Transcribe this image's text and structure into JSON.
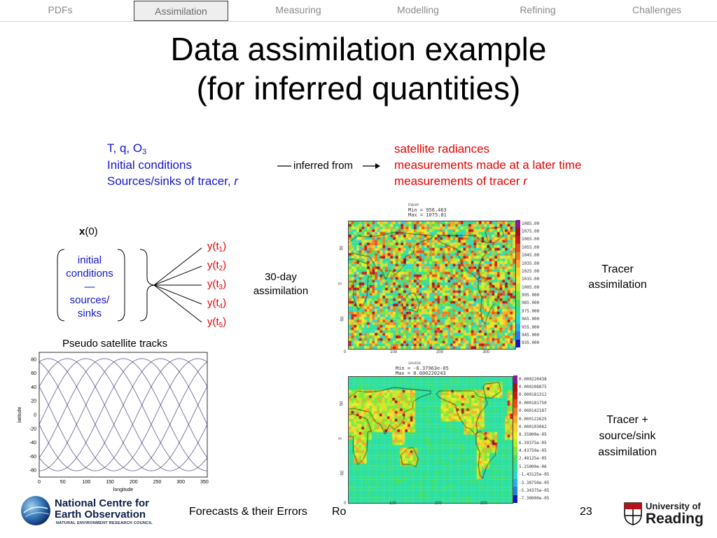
{
  "nav": {
    "items": [
      {
        "label": "PDFs"
      },
      {
        "label": "Assimilation"
      },
      {
        "label": "Measuring"
      },
      {
        "label": "Modelling"
      },
      {
        "label": "Refining"
      },
      {
        "label": "Challenges"
      }
    ],
    "active_index": 1
  },
  "slide": {
    "title_line1": "Data assimilation example",
    "title_line2": "(for inferred quantities)"
  },
  "inferred": {
    "left": {
      "line1": "T, q, O",
      "line1_sub": "3",
      "line2": "Initial conditions",
      "line3": "Sources/sinks of tracer, ",
      "line3_var": "r"
    },
    "arrow_label": "inferred from",
    "right": {
      "line1": "satellite radiances",
      "line2": "measurements made at a later time",
      "line3": "measurements of tracer ",
      "line3_var": "r"
    }
  },
  "diagram": {
    "x0_bold": "x",
    "x0_rest": "(0)",
    "left_box": [
      "initial",
      "conditions",
      "—",
      "sources/",
      "sinks"
    ],
    "outputs": [
      "1",
      "2",
      "3",
      "4",
      "5"
    ],
    "output_prefix": "y(t",
    "output_suffix": ")",
    "assim_label_line1": "30-day",
    "assim_label_line2": "assimilation"
  },
  "tracks": {
    "caption": "Pseudo satellite tracks",
    "xlabel": "longitude",
    "ylabel": "latitude",
    "yticks": [
      "80",
      "60",
      "40",
      "20",
      "0",
      "-20",
      "-40",
      "-60",
      "-80"
    ],
    "xticks": [
      "0",
      "50",
      "100",
      "150",
      "200",
      "250",
      "300",
      "350"
    ]
  },
  "map1": {
    "header": "tracer",
    "min_label": "Min =",
    "min_value": "956.463",
    "max_label": "Max =",
    "max_value": "1075.81",
    "colorbar": [
      "1085.00",
      "1075.00",
      "1065.00",
      "1055.00",
      "1045.00",
      "1035.00",
      "1025.00",
      "1015.00",
      "1005.00",
      "995.000",
      "985.000",
      "975.000",
      "965.000",
      "955.000",
      "945.000",
      "935.000"
    ],
    "xticks": [
      "0",
      "100",
      "200",
      "300"
    ],
    "yticks": [
      "50",
      "0",
      "-50"
    ],
    "caption_line1": "Tracer",
    "caption_line2": "assimilation"
  },
  "map2": {
    "header": "source",
    "min_label": "Min =",
    "min_value": "-6.37963e-05",
    "max_label": "Max =",
    "max_value": "0.000220243",
    "colorbar": [
      "0.000220438",
      "0.000208875",
      "0.000181312",
      "0.000181750",
      "0.000142187",
      "0.000122625",
      "0.000103062",
      "8.35000e-05",
      "6.39375e-05",
      "4.43750e-05",
      "2.48125e-05",
      "5.25000e-06",
      "-1.43125e-05",
      "-3.38750e-05",
      "-5.34375e-05",
      "-7.30000e-05"
    ],
    "xticks": [
      "0",
      "100",
      "200",
      "300"
    ],
    "yticks": [
      "50",
      "0",
      "-50"
    ],
    "caption_line1": "Tracer +",
    "caption_line2": "source/sink",
    "caption_line3": "assimilation"
  },
  "footer": {
    "org_line1": "National Centre for",
    "org_line2": "Earth Observation",
    "org_line3": "NATURAL ENVIRONMENT RESEARCH COUNCIL",
    "text": "Forecasts & their Errors",
    "text2": "Ro",
    "page": "23",
    "uni_line1": "University of",
    "uni_line2": "Reading"
  },
  "colors": {
    "nav_text": "#8a8a8a",
    "blue_text": "#1515c8",
    "red_text": "#e60000"
  }
}
